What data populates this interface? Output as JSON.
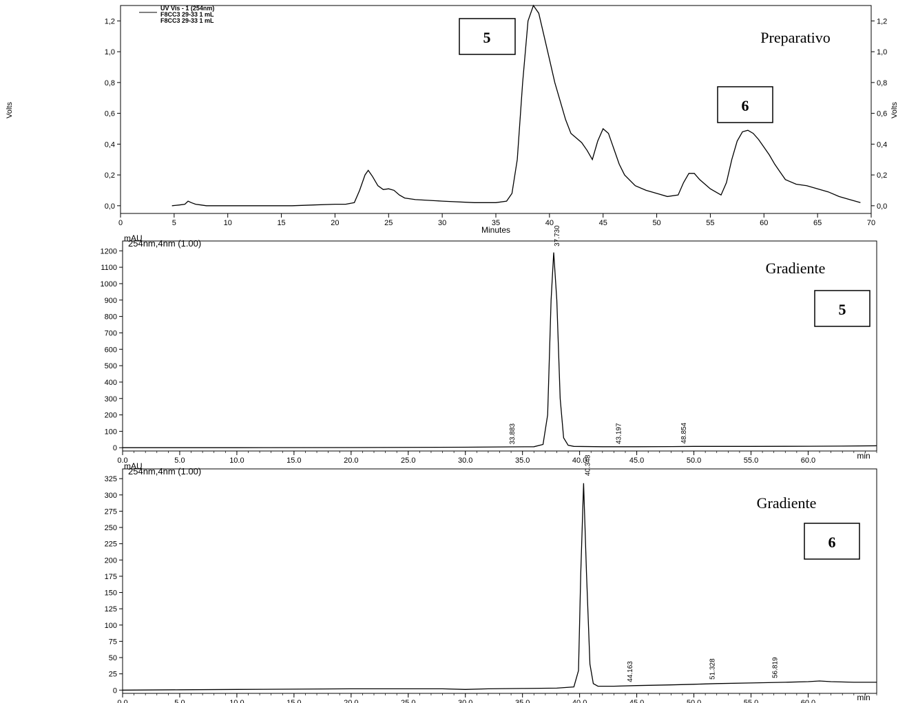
{
  "chart_data": [
    {
      "type": "line",
      "title": "Preparativo",
      "xlabel": "Minutes",
      "ylabel": "Volts",
      "legend": {
        "header": "UV Vis - 1 (254nm)",
        "entries": [
          "F8CC3 29-33 1 mL",
          "F8CC3 29-33 1 mL"
        ]
      },
      "xlim": [
        0,
        70
      ],
      "ylim": [
        -0.05,
        1.3
      ],
      "x_ticks": [
        "0",
        "5",
        "10",
        "15",
        "20",
        "25",
        "30",
        "35",
        "40",
        "45",
        "50",
        "55",
        "60",
        "65",
        "70"
      ],
      "y_ticks": [
        "0,0",
        "0,2",
        "0,4",
        "0,6",
        "0,8",
        "1,0",
        "1,2"
      ],
      "boxes": [
        {
          "text": "5",
          "x": 34.5,
          "y": 1.2
        },
        {
          "text": "6",
          "x": 58.3,
          "y": 0.65
        }
      ],
      "series": [
        {
          "points": [
            [
              4.8,
              0.0
            ],
            [
              5.5,
              0.005
            ],
            [
              6.0,
              0.01
            ],
            [
              6.3,
              0.03
            ],
            [
              6.6,
              0.02
            ],
            [
              7.0,
              0.01
            ],
            [
              7.5,
              0.005
            ],
            [
              8.0,
              0.0
            ],
            [
              10,
              0.0
            ],
            [
              12,
              0.0
            ],
            [
              14,
              0.0
            ],
            [
              16,
              0.0
            ],
            [
              18,
              0.005
            ],
            [
              20,
              0.01
            ],
            [
              21.0,
              0.01
            ],
            [
              21.8,
              0.02
            ],
            [
              22.3,
              0.1
            ],
            [
              22.8,
              0.2
            ],
            [
              23.1,
              0.23
            ],
            [
              23.5,
              0.19
            ],
            [
              24.0,
              0.13
            ],
            [
              24.5,
              0.105
            ],
            [
              25.0,
              0.11
            ],
            [
              25.5,
              0.1
            ],
            [
              26.0,
              0.07
            ],
            [
              26.5,
              0.05
            ],
            [
              27.5,
              0.04
            ],
            [
              30,
              0.03
            ],
            [
              33,
              0.02
            ],
            [
              35.0,
              0.02
            ],
            [
              36.0,
              0.03
            ],
            [
              36.5,
              0.08
            ],
            [
              37.0,
              0.3
            ],
            [
              37.5,
              0.8
            ],
            [
              38.0,
              1.2
            ],
            [
              38.5,
              1.3
            ],
            [
              39.0,
              1.25
            ],
            [
              39.5,
              1.1
            ],
            [
              40.0,
              0.95
            ],
            [
              40.5,
              0.8
            ],
            [
              41.0,
              0.68
            ],
            [
              41.5,
              0.56
            ],
            [
              42.0,
              0.47
            ],
            [
              42.5,
              0.44
            ],
            [
              43.0,
              0.41
            ],
            [
              43.5,
              0.36
            ],
            [
              44.0,
              0.3
            ],
            [
              44.5,
              0.42
            ],
            [
              45.0,
              0.5
            ],
            [
              45.5,
              0.47
            ],
            [
              46.0,
              0.37
            ],
            [
              46.5,
              0.27
            ],
            [
              47.0,
              0.2
            ],
            [
              48.0,
              0.13
            ],
            [
              49.0,
              0.1
            ],
            [
              50.0,
              0.08
            ],
            [
              51.0,
              0.06
            ],
            [
              52.0,
              0.07
            ],
            [
              52.5,
              0.15
            ],
            [
              53.0,
              0.21
            ],
            [
              53.5,
              0.21
            ],
            [
              54.0,
              0.17
            ],
            [
              55.0,
              0.11
            ],
            [
              56.0,
              0.07
            ],
            [
              56.5,
              0.15
            ],
            [
              57.0,
              0.3
            ],
            [
              57.5,
              0.42
            ],
            [
              58.0,
              0.48
            ],
            [
              58.5,
              0.49
            ],
            [
              59.0,
              0.47
            ],
            [
              59.5,
              0.43
            ],
            [
              60.0,
              0.38
            ],
            [
              60.5,
              0.33
            ],
            [
              61.0,
              0.27
            ],
            [
              61.5,
              0.22
            ],
            [
              62.0,
              0.17
            ],
            [
              63.0,
              0.14
            ],
            [
              64.0,
              0.13
            ],
            [
              65.0,
              0.11
            ],
            [
              66.0,
              0.09
            ],
            [
              67.0,
              0.06
            ],
            [
              68.0,
              0.04
            ],
            [
              69.0,
              0.02
            ]
          ]
        }
      ]
    },
    {
      "type": "line",
      "title": "Gradiente",
      "header": "254nm,4nm (1.00)",
      "unit_label": "mAU",
      "xunit_label": "min",
      "xlim": [
        0,
        66
      ],
      "ylim": [
        -20,
        1260
      ],
      "x_ticks": [
        "0.0",
        "5.0",
        "10.0",
        "15.0",
        "20.0",
        "25.0",
        "30.0",
        "35.0",
        "40.0",
        "45.0",
        "50.0",
        "55.0",
        "60.0"
      ],
      "y_ticks": [
        "0",
        "100",
        "200",
        "300",
        "400",
        "500",
        "600",
        "700",
        "800",
        "900",
        "1000",
        "1100",
        "1200"
      ],
      "box": "5",
      "peak_labels": [
        {
          "text": "33.883",
          "x": 34.3,
          "y": 3
        },
        {
          "text": "37.730",
          "x": 38.2,
          "y": 1210
        },
        {
          "text": "43.197",
          "x": 43.6,
          "y": 5
        },
        {
          "text": "48.854",
          "x": 49.3,
          "y": 8
        }
      ],
      "series": [
        {
          "points": [
            [
              0,
              0
            ],
            [
              10,
              0
            ],
            [
              20,
              1
            ],
            [
              30,
              3
            ],
            [
              34,
              5
            ],
            [
              36,
              6
            ],
            [
              36.8,
              20
            ],
            [
              37.2,
              200
            ],
            [
              37.5,
              900
            ],
            [
              37.73,
              1190
            ],
            [
              38.0,
              900
            ],
            [
              38.3,
              300
            ],
            [
              38.6,
              60
            ],
            [
              39.0,
              15
            ],
            [
              39.5,
              8
            ],
            [
              42,
              6
            ],
            [
              45,
              6
            ],
            [
              48,
              7
            ],
            [
              50,
              8
            ],
            [
              55,
              8
            ],
            [
              60,
              9
            ],
            [
              63,
              10
            ],
            [
              66,
              12
            ]
          ]
        }
      ]
    },
    {
      "type": "line",
      "title": "Gradiente",
      "header": "254nm,4nm (1.00)",
      "unit_label": "mAU",
      "xunit_label": "min",
      "xlim": [
        0,
        66
      ],
      "ylim": [
        -5,
        340
      ],
      "x_ticks": [
        "0.0",
        "5.0",
        "10.0",
        "15.0",
        "20.0",
        "25.0",
        "30.0",
        "35.0",
        "40.0",
        "45.0",
        "50.0",
        "55.0",
        "60.0"
      ],
      "y_ticks": [
        "0",
        "25",
        "50",
        "75",
        "100",
        "125",
        "150",
        "175",
        "200",
        "225",
        "250",
        "275",
        "300",
        "325"
      ],
      "box": "6",
      "peak_labels": [
        {
          "text": "40.348",
          "x": 40.9,
          "y": 325
        },
        {
          "text": "44.163",
          "x": 44.6,
          "y": 8
        },
        {
          "text": "51.328",
          "x": 51.8,
          "y": 12
        },
        {
          "text": "56.819",
          "x": 57.3,
          "y": 14
        }
      ],
      "series": [
        {
          "points": [
            [
              0,
              0
            ],
            [
              5,
              0.5
            ],
            [
              10,
              1
            ],
            [
              15,
              1.5
            ],
            [
              20,
              2
            ],
            [
              25,
              2
            ],
            [
              28,
              2
            ],
            [
              30,
              1
            ],
            [
              32,
              2
            ],
            [
              35,
              2.5
            ],
            [
              38,
              3
            ],
            [
              39.5,
              5
            ],
            [
              39.9,
              30
            ],
            [
              40.1,
              180
            ],
            [
              40.35,
              318
            ],
            [
              40.6,
              180
            ],
            [
              40.9,
              40
            ],
            [
              41.2,
              10
            ],
            [
              41.6,
              6
            ],
            [
              43,
              6
            ],
            [
              45,
              7
            ],
            [
              48,
              8
            ],
            [
              50,
              9
            ],
            [
              52,
              10
            ],
            [
              55,
              11
            ],
            [
              58,
              12
            ],
            [
              60,
              13
            ],
            [
              61,
              14
            ],
            [
              62,
              13
            ],
            [
              64,
              12
            ],
            [
              66,
              12
            ]
          ]
        }
      ]
    }
  ]
}
